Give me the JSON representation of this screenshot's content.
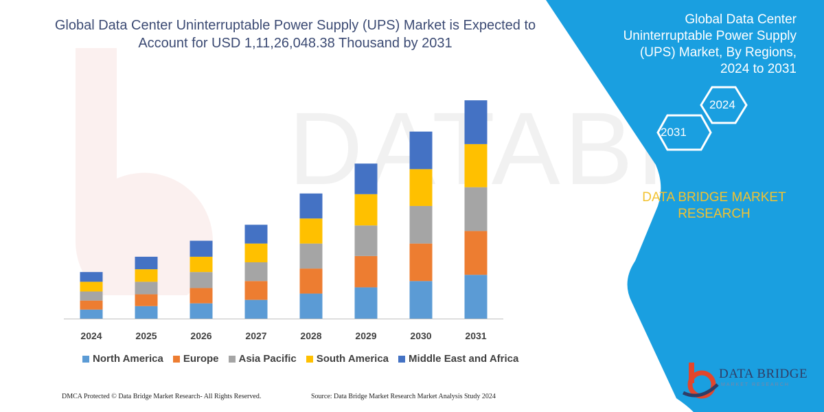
{
  "chart_data": {
    "type": "bar",
    "stacked": true,
    "title": "Global Data Center Uninterruptable Power Supply (UPS) Market is Expected to Account for USD 1,11,26,048.38 Thousand by 2031",
    "categories": [
      "2024",
      "2025",
      "2026",
      "2027",
      "2028",
      "2029",
      "2030",
      "2031"
    ],
    "series": [
      {
        "name": "North America",
        "color": "#5b9bd5",
        "values": [
          13,
          18,
          22,
          27,
          36,
          45,
          54,
          63
        ]
      },
      {
        "name": "Europe",
        "color": "#ed7d31",
        "values": [
          13,
          17,
          22,
          27,
          36,
          45,
          54,
          63
        ]
      },
      {
        "name": "Asia Pacific",
        "color": "#a5a5a5",
        "values": [
          13,
          18,
          23,
          27,
          36,
          44,
          54,
          63
        ]
      },
      {
        "name": "South America",
        "color": "#ffc000",
        "values": [
          14,
          18,
          22,
          27,
          36,
          45,
          53,
          62
        ]
      },
      {
        "name": "Middle East and Africa",
        "color": "#4472c4",
        "values": [
          14,
          18,
          23,
          27,
          36,
          44,
          54,
          63
        ]
      }
    ],
    "ylim": [
      0,
      320
    ],
    "grid": false,
    "legend_position": "bottom"
  },
  "panel": {
    "title": "Global Data Center Uninterruptable Power Supply (UPS) Market, By Regions, 2024 to 2031",
    "hex_year_left": "2031",
    "hex_year_right": "2024",
    "brand_text": "DATA BRIDGE MARKET RESEARCH",
    "logo_text": "DATA BRIDGE",
    "logo_subtext": "MARKET RESEARCH"
  },
  "colors": {
    "panel_blue": "#1a9fe0",
    "title_color": "#3b4a73",
    "brand_yellow": "#f2c230"
  },
  "footer": {
    "dmca": "DMCA Protected © Data Bridge Market Research-  All Rights Reserved.",
    "source": "Source: Data Bridge Market Research  Market Analysis Study 2024"
  }
}
